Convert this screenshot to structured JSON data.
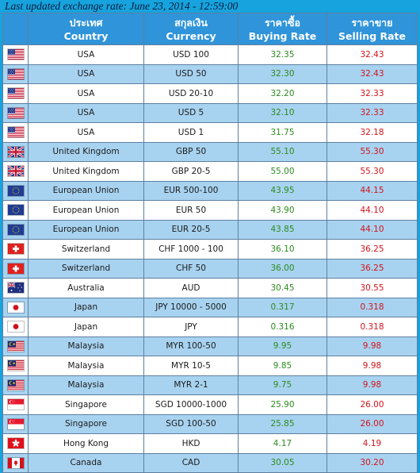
{
  "header": {
    "updated_text": "Last updated exchange rate: June 23, 2014 - 12:59:00"
  },
  "columns": {
    "country_th": "ประเทศ",
    "country_en": "Country",
    "currency_th": "สกุลเงิน",
    "currency_en": "Currency",
    "buying_th": "ราคาซื้อ",
    "buying_en": "Buying Rate",
    "selling_th": "ราคาขาย",
    "selling_en": "Selling Rate"
  },
  "colors": {
    "buying": "#2c8a1e",
    "selling": "#d2141b",
    "header_bg": "#2f94d9",
    "row_alt": "#a8d3f0",
    "page_bg": "#16a3de"
  },
  "rows": [
    {
      "flag": "us-flag-icon",
      "country": "USA",
      "currency": "USD 100",
      "buying": "32.35",
      "selling": "32.43"
    },
    {
      "flag": "us-flag-icon",
      "country": "USA",
      "currency": "USD 50",
      "buying": "32.30",
      "selling": "32.43"
    },
    {
      "flag": "us-flag-icon",
      "country": "USA",
      "currency": "USD 20-10",
      "buying": "32.20",
      "selling": "32.33"
    },
    {
      "flag": "us-flag-icon",
      "country": "USA",
      "currency": "USD 5",
      "buying": "32.10",
      "selling": "32.33"
    },
    {
      "flag": "us-flag-icon",
      "country": "USA",
      "currency": "USD 1",
      "buying": "31.75",
      "selling": "32.18"
    },
    {
      "flag": "uk-flag-icon",
      "country": "United Kingdom",
      "currency": "GBP 50",
      "buying": "55.10",
      "selling": "55.30"
    },
    {
      "flag": "uk-flag-icon",
      "country": "United Kingdom",
      "currency": "GBP 20-5",
      "buying": "55.00",
      "selling": "55.30"
    },
    {
      "flag": "eu-flag-icon",
      "country": "European Union",
      "currency": "EUR 500-100",
      "buying": "43.95",
      "selling": "44.15"
    },
    {
      "flag": "eu-flag-icon",
      "country": "European Union",
      "currency": "EUR 50",
      "buying": "43.90",
      "selling": "44.10"
    },
    {
      "flag": "eu-flag-icon",
      "country": "European Union",
      "currency": "EUR 20-5",
      "buying": "43.85",
      "selling": "44.10"
    },
    {
      "flag": "ch-flag-icon",
      "country": "Switzerland",
      "currency": "CHF 1000 - 100",
      "buying": "36.10",
      "selling": "36.25"
    },
    {
      "flag": "ch-flag-icon",
      "country": "Switzerland",
      "currency": "CHF 50",
      "buying": "36.00",
      "selling": "36.25"
    },
    {
      "flag": "au-flag-icon",
      "country": "Australia",
      "currency": "AUD",
      "buying": "30.45",
      "selling": "30.55"
    },
    {
      "flag": "jp-flag-icon",
      "country": "Japan",
      "currency": "JPY 10000 - 5000",
      "buying": "0.317",
      "selling": "0.318"
    },
    {
      "flag": "jp-flag-icon",
      "country": "Japan",
      "currency": "JPY",
      "buying": "0.316",
      "selling": "0.318"
    },
    {
      "flag": "my-flag-icon",
      "country": "Malaysia",
      "currency": "MYR 100-50",
      "buying": "9.95",
      "selling": "9.98"
    },
    {
      "flag": "my-flag-icon",
      "country": "Malaysia",
      "currency": "MYR 10-5",
      "buying": "9.85",
      "selling": "9.98"
    },
    {
      "flag": "my-flag-icon",
      "country": "Malaysia",
      "currency": "MYR 2-1",
      "buying": "9.75",
      "selling": "9.98"
    },
    {
      "flag": "sg-flag-icon",
      "country": "Singapore",
      "currency": "SGD 10000-1000",
      "buying": "25.90",
      "selling": "26.00"
    },
    {
      "flag": "sg-flag-icon",
      "country": "Singapore",
      "currency": "SGD 100-50",
      "buying": "25.85",
      "selling": "26.00"
    },
    {
      "flag": "hk-flag-icon",
      "country": "Hong Kong",
      "currency": "HKD",
      "buying": "4.17",
      "selling": "4.19"
    },
    {
      "flag": "ca-flag-icon",
      "country": "Canada",
      "currency": "CAD",
      "buying": "30.05",
      "selling": "30.20"
    }
  ]
}
